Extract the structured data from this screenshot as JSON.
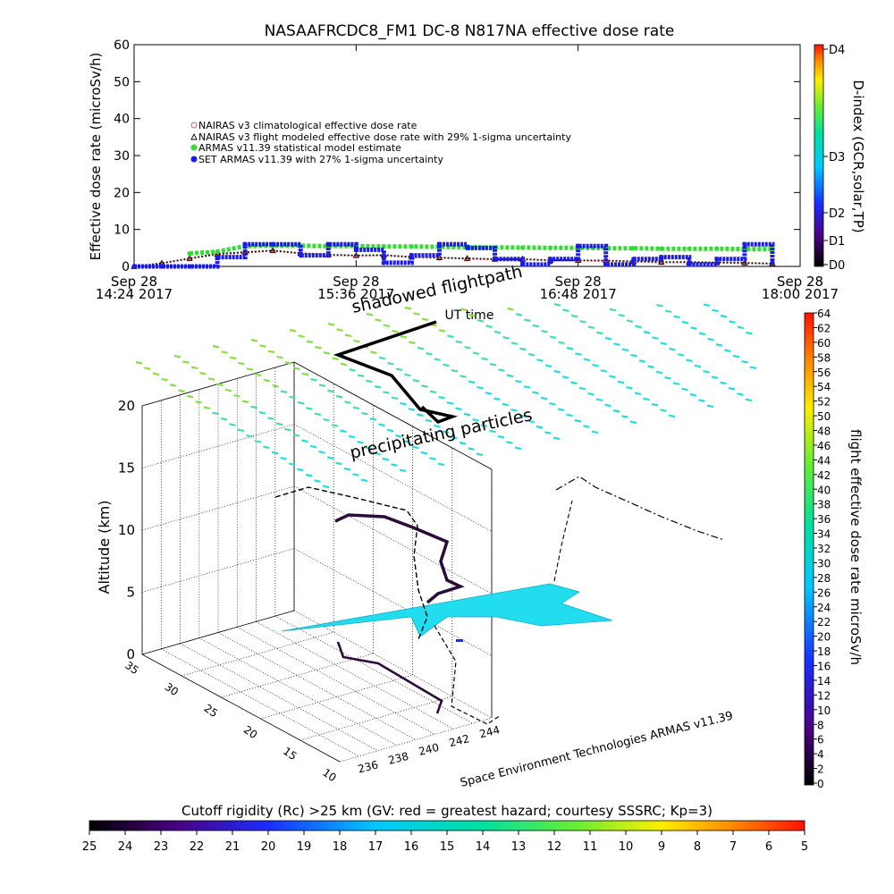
{
  "chart_data": [
    {
      "type": "line",
      "title": "NASAAFRCDC8_FM1 DC-8   N817NA effective dose rate",
      "ylabel": "Effective dose rate (microSv/h)",
      "xlabel": "UT time",
      "ylim": [
        0,
        60
      ],
      "yticks": [
        "0",
        "10",
        "20",
        "30",
        "40",
        "50",
        "60"
      ],
      "xticks": [
        {
          "line1": "Sep 28",
          "line2": "14:24 2017"
        },
        {
          "line1": "Sep 28",
          "line2": "15:36 2017"
        },
        {
          "line1": "Sep 28",
          "line2": "16:48 2017"
        },
        {
          "line1": "Sep 28",
          "line2": "18:00 2017"
        }
      ],
      "x_unit": "hours UT",
      "x": [
        14.4,
        14.55,
        14.7,
        14.85,
        15.0,
        15.15,
        15.3,
        15.45,
        15.6,
        15.75,
        15.9,
        16.05,
        16.2,
        16.35,
        16.5,
        16.65,
        16.8,
        16.95,
        17.1,
        17.25,
        17.4,
        17.55,
        17.7,
        17.85
      ],
      "series": [
        {
          "name": "NAIRAS v3 climatological effective dose rate",
          "color": "#d06060",
          "marker": "circle",
          "values": [
            0,
            0.8,
            2.0,
            3.2,
            3.6,
            4.2,
            3.4,
            3.0,
            2.8,
            2.9,
            2.4,
            2.2,
            2.0,
            1.8,
            1.8,
            1.5,
            1.5,
            1.4,
            1.2,
            1.0,
            1.0,
            0.9,
            0.8,
            0.6
          ]
        },
        {
          "name": "NAIRAS v3 flight modeled effective dose rate with 29% 1-sigma uncertainty",
          "color": "#000000",
          "marker": "triangle",
          "values": [
            0,
            0.9,
            2.2,
            3.4,
            3.9,
            4.3,
            3.6,
            3.2,
            3.0,
            3.1,
            2.6,
            2.4,
            2.2,
            2.0,
            2.0,
            1.7,
            1.7,
            1.6,
            1.4,
            1.2,
            1.2,
            1.1,
            1.0,
            0.8
          ]
        },
        {
          "name": "ARMAS v11.39 statistical model estimate",
          "color": "#33dd33",
          "marker": "circle",
          "values": [
            null,
            null,
            3.5,
            4.0,
            5.5,
            5.6,
            5.6,
            5.5,
            5.5,
            5.4,
            5.4,
            5.3,
            5.2,
            5.1,
            5.1,
            5.0,
            5.0,
            4.9,
            4.9,
            4.8,
            4.8,
            4.8,
            4.7,
            4.7
          ]
        },
        {
          "name": "SET ARMAS v11.39 with 27% 1-sigma uncertainty",
          "color": "#1a1aee",
          "marker": "circle",
          "values": [
            0,
            0,
            0,
            2.5,
            6.0,
            6.0,
            3.0,
            6.0,
            4.5,
            1.0,
            3.0,
            6.0,
            5.0,
            2.0,
            0.5,
            2.0,
            5.5,
            0.5,
            2.0,
            2.5,
            0.5,
            2.0,
            6.0,
            1.0
          ]
        }
      ],
      "right_axis": {
        "label": "D-index (GCR,solar,TP)",
        "ticks": [
          "D0",
          "D1",
          "D2",
          "D3",
          "D4"
        ]
      }
    },
    {
      "type": "scatter",
      "subtype": "3d-flight-track",
      "ylabel": "Altitude (km)",
      "zticks": [
        "0",
        "5",
        "10",
        "15",
        "20"
      ],
      "lat_ticks": [
        "10",
        "15",
        "20",
        "25",
        "30",
        "35"
      ],
      "lon_ticks": [
        "236",
        "238",
        "240",
        "242",
        "244"
      ],
      "annotations": {
        "shadowed": "shadowed flightpath",
        "precip": "precipitating particles",
        "credit": "Space Environment Technologies ARMAS v11.39"
      },
      "colorbar": {
        "label": "flight effective dose rate microSv/h",
        "ticks": [
          "0",
          "2",
          "4",
          "6",
          "8",
          "10",
          "12",
          "14",
          "16",
          "18",
          "20",
          "22",
          "24",
          "26",
          "28",
          "30",
          "32",
          "34",
          "36",
          "38",
          "40",
          "42",
          "44",
          "46",
          "48",
          "50",
          "52",
          "54",
          "56",
          "58",
          "60",
          "62",
          "64"
        ]
      },
      "cutoff_bar": {
        "title": "Cutoff rigidity (Rc) >25 km (GV: red = greatest hazard; courtesy SSSRC; Kp=3)",
        "ticks": [
          "25",
          "24",
          "23",
          "22",
          "21",
          "20",
          "19",
          "18",
          "17",
          "16",
          "15",
          "14",
          "13",
          "12",
          "11",
          "10",
          "9",
          "8",
          "7",
          "6",
          "5"
        ]
      }
    }
  ]
}
